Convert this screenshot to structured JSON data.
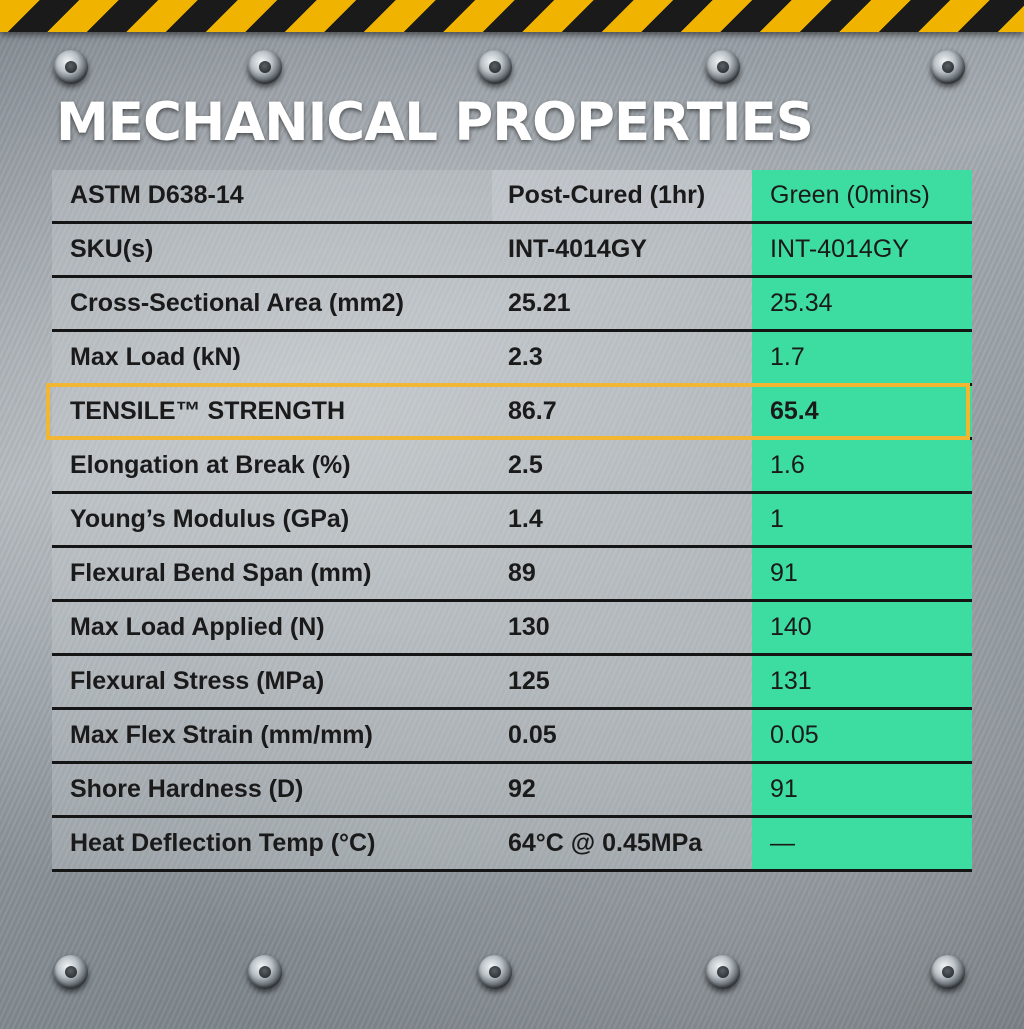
{
  "title": "MECHANICAL PROPERTIES",
  "colors": {
    "accent_green": "#3ddca0",
    "highlight_border": "#f2b632",
    "hazard_yellow": "#f0b400"
  },
  "icons": [
    "hazard-stripe",
    "bolt-icon"
  ],
  "table": {
    "header": [
      "ASTM D638-14",
      "Post-Cured (1hr)",
      "Green (0mins)"
    ],
    "rows": [
      [
        "SKU(s)",
        "INT-4014GY",
        "INT-4014GY"
      ],
      [
        "Cross-Sectional Area (mm2)",
        "25.21",
        "25.34"
      ],
      [
        "Max Load (kN)",
        "2.3",
        "1.7"
      ],
      [
        "TENSILE™ STRENGTH",
        "86.7",
        "65.4"
      ],
      [
        "Elongation at Break (%)",
        "2.5",
        "1.6"
      ],
      [
        "Young’s Modulus (GPa)",
        "1.4",
        "1"
      ],
      [
        "Flexural Bend Span (mm)",
        "89",
        "91"
      ],
      [
        "Max Load Applied (N)",
        "130",
        "140"
      ],
      [
        "Flexural Stress (MPa)",
        "125",
        "131"
      ],
      [
        "Max Flex Strain (mm/mm)",
        "0.05",
        "0.05"
      ],
      [
        "Shore Hardness (D)",
        "92",
        "91"
      ],
      [
        "Heat Deflection Temp (°C)",
        "64°C @ 0.45MPa",
        "—"
      ]
    ]
  }
}
